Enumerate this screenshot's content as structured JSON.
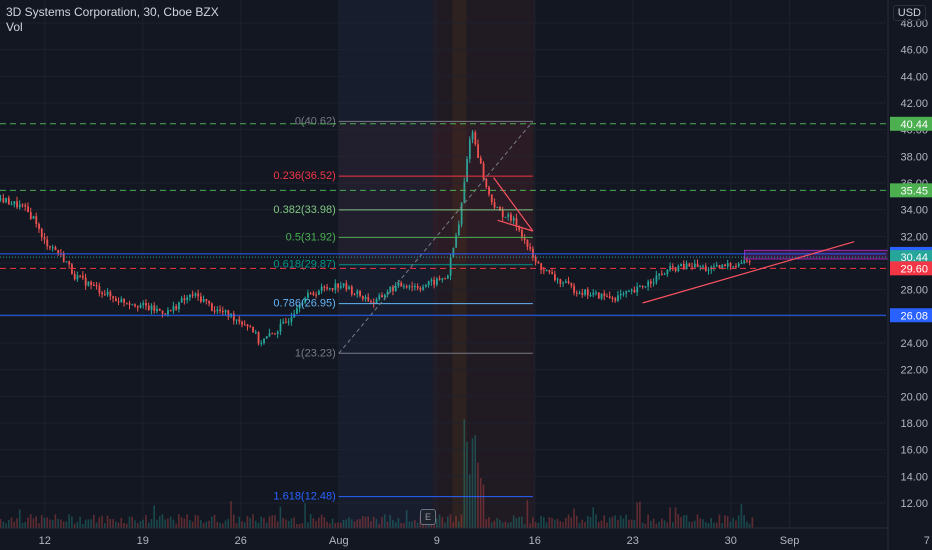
{
  "header": {
    "title": "3D Systems Corporation, 30, Cboe BZX",
    "sub": "Vol",
    "currency": "USD"
  },
  "colors": {
    "background": "#131722",
    "up": "#26a69a",
    "down": "#ef5350",
    "fib": "#787b86",
    "blue_line": "#2962ff",
    "green_dash": "#4caf50",
    "red_dash": "#f23645",
    "trend_orange": "#f7525f"
  },
  "earnings_badge": "E",
  "chart_data": {
    "type": "candlestick",
    "ylim": [
      10.5,
      50.5
    ],
    "y_ticks": [
      12,
      14,
      16,
      18,
      20,
      22,
      24,
      26,
      28,
      30,
      32,
      34,
      36,
      38,
      40,
      42,
      44,
      46,
      48
    ],
    "y_tick_labels": [
      "12.00",
      "14.00",
      "16.00",
      "18.00",
      "20.00",
      "22.00",
      "24.00",
      "26.00",
      "28.00",
      "30.00",
      "32.00",
      "34.00",
      "36.00",
      "38.00",
      "40.00",
      "42.00",
      "44.00",
      "46.00",
      "48.00"
    ],
    "x_ticks": [
      {
        "label": "12",
        "t": 0.5
      },
      {
        "label": "19",
        "t": 5.5
      },
      {
        "label": "26",
        "t": 10.5
      },
      {
        "label": "Aug",
        "t": 15.5
      },
      {
        "label": "9",
        "t": 20.5
      },
      {
        "label": "16",
        "t": 25.5
      },
      {
        "label": "23",
        "t": 30.5
      },
      {
        "label": "30",
        "t": 35.5
      },
      {
        "label": "Sep",
        "t": 38.5
      },
      {
        "label": "7",
        "t": 45.5
      }
    ],
    "price_path": [
      [
        -1.8,
        34.8
      ],
      [
        -0.7,
        34.2
      ],
      [
        0.0,
        33.2
      ],
      [
        0.3,
        31.8
      ],
      [
        1.0,
        31.0
      ],
      [
        1.5,
        30.2
      ],
      [
        2.0,
        29.0
      ],
      [
        3.0,
        28.2
      ],
      [
        4.0,
        27.3
      ],
      [
        5.0,
        27.0
      ],
      [
        6.0,
        26.5
      ],
      [
        6.8,
        26.3
      ],
      [
        7.3,
        27.0
      ],
      [
        8.0,
        27.6
      ],
      [
        8.6,
        27.2
      ],
      [
        9.0,
        26.6
      ],
      [
        10.0,
        26.0
      ],
      [
        11.0,
        25.2
      ],
      [
        11.4,
        24.0
      ],
      [
        12.0,
        24.6
      ],
      [
        12.8,
        25.6
      ],
      [
        13.5,
        27.2
      ],
      [
        14.5,
        28.0
      ],
      [
        15.5,
        28.4
      ],
      [
        16.5,
        27.6
      ],
      [
        17.3,
        27.0
      ],
      [
        18.0,
        28.0
      ],
      [
        18.8,
        28.4
      ],
      [
        19.6,
        28.2
      ],
      [
        20.4,
        28.6
      ],
      [
        21.0,
        29.0
      ],
      [
        21.2,
        30.5
      ],
      [
        21.6,
        33.0
      ],
      [
        21.9,
        36.5
      ],
      [
        22.2,
        40.2
      ],
      [
        22.5,
        38.5
      ],
      [
        23.0,
        35.5
      ],
      [
        23.5,
        34.0
      ],
      [
        24.0,
        33.5
      ],
      [
        24.5,
        33.0
      ],
      [
        25.0,
        31.5
      ],
      [
        25.5,
        30.0
      ],
      [
        26.5,
        28.8
      ],
      [
        27.5,
        28.0
      ],
      [
        28.5,
        27.6
      ],
      [
        29.5,
        27.4
      ],
      [
        30.5,
        27.8
      ],
      [
        31.5,
        28.8
      ],
      [
        32.5,
        29.6
      ],
      [
        33.5,
        29.8
      ],
      [
        34.5,
        29.5
      ],
      [
        35.5,
        29.9
      ],
      [
        36.5,
        30.2
      ]
    ],
    "horizontal_levels": [
      {
        "price": 40.44,
        "label": "40.44",
        "color": "#4caf50",
        "style": "dashed"
      },
      {
        "price": 35.45,
        "label": "35.45",
        "color": "#4caf50",
        "style": "dashed"
      },
      {
        "price": 30.68,
        "label": "30.68",
        "color": "#2962ff",
        "style": "solid"
      },
      {
        "price": 30.44,
        "label": "30.44",
        "color": "#26a69a",
        "style": "dotted"
      },
      {
        "price": 29.6,
        "label": "29.60",
        "color": "#f23645",
        "style": "dashed"
      },
      {
        "price": 26.08,
        "label": "26.08",
        "color": "#2962ff",
        "style": "solid"
      }
    ],
    "fib_levels": [
      {
        "label": "0(40.62)",
        "price": 40.62,
        "color": "#787b86"
      },
      {
        "label": "0.236(36.52)",
        "price": 36.52,
        "color": "#f23645"
      },
      {
        "label": "0.382(33.98)",
        "price": 33.98,
        "color": "#81c784"
      },
      {
        "label": "0.5(31.92)",
        "price": 31.92,
        "color": "#4caf50"
      },
      {
        "label": "0.618(29.87)",
        "price": 29.87,
        "color": "#009688"
      },
      {
        "label": "0.786(26.95)",
        "price": 26.95,
        "color": "#64b5f6"
      },
      {
        "label": "1(23.23)",
        "price": 23.23,
        "color": "#787b86"
      },
      {
        "label": "1.618(12.48)",
        "price": 12.48,
        "color": "#2962ff"
      }
    ],
    "fib_span": {
      "t_start": 15.5,
      "t_end": 25.4
    },
    "fib_anchor_line": {
      "from": [
        15.5,
        23.23
      ],
      "to": [
        25.4,
        40.62
      ]
    },
    "trendlines": [
      {
        "from": [
          31.0,
          27.0
        ],
        "to": [
          41.8,
          31.6
        ],
        "color": "#f7525f"
      },
      {
        "from": [
          23.4,
          36.4
        ],
        "to": [
          25.4,
          32.4
        ],
        "color": "#f7525f"
      },
      {
        "from": [
          23.6,
          33.2
        ],
        "to": [
          25.4,
          32.4
        ],
        "color": "#f7525f"
      }
    ],
    "box": {
      "t0": 36.2,
      "t1": 46.5,
      "p0": 30.3,
      "p1": 30.95,
      "color": "#9c27b0"
    }
  }
}
